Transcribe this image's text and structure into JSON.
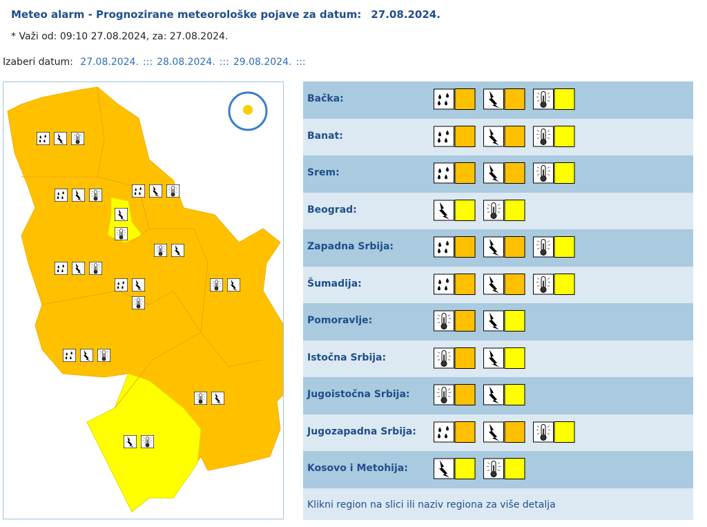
{
  "header": {
    "title": "Meteo alarm - Prognozirane meteorološke pojave za datum:",
    "date": "27.08.2024.",
    "valid": "* Važi od: 09:10 27.08.2024, za: 27.08.2024."
  },
  "date_picker": {
    "label": "Izaberi datum:",
    "dates": [
      "27.08.2024.",
      "28.08.2024.",
      "29.08.2024."
    ],
    "separator": ":::"
  },
  "regions": [
    {
      "name": "Bačka:",
      "warnings": [
        {
          "icon": "rain",
          "color": "#ffc000"
        },
        {
          "icon": "lightning",
          "color": "#ffc000"
        },
        {
          "icon": "temperature",
          "color": "#ffff00"
        }
      ]
    },
    {
      "name": "Banat:",
      "warnings": [
        {
          "icon": "rain",
          "color": "#ffc000"
        },
        {
          "icon": "lightning",
          "color": "#ffc000"
        },
        {
          "icon": "temperature",
          "color": "#ffff00"
        }
      ]
    },
    {
      "name": "Srem:",
      "warnings": [
        {
          "icon": "rain",
          "color": "#ffc000"
        },
        {
          "icon": "lightning",
          "color": "#ffc000"
        },
        {
          "icon": "temperature",
          "color": "#ffff00"
        }
      ]
    },
    {
      "name": "Beograd:",
      "warnings": [
        {
          "icon": "lightning",
          "color": "#ffff00"
        },
        {
          "icon": "temperature",
          "color": "#ffff00"
        }
      ]
    },
    {
      "name": "Zapadna Srbija:",
      "warnings": [
        {
          "icon": "rain",
          "color": "#ffc000"
        },
        {
          "icon": "lightning",
          "color": "#ffc000"
        },
        {
          "icon": "temperature",
          "color": "#ffff00"
        }
      ]
    },
    {
      "name": "Šumadija:",
      "warnings": [
        {
          "icon": "rain",
          "color": "#ffc000"
        },
        {
          "icon": "lightning",
          "color": "#ffc000"
        },
        {
          "icon": "temperature",
          "color": "#ffff00"
        }
      ]
    },
    {
      "name": "Pomoravlje:",
      "warnings": [
        {
          "icon": "temperature",
          "color": "#ffc000"
        },
        {
          "icon": "lightning",
          "color": "#ffff00"
        }
      ]
    },
    {
      "name": "Istočna Srbija:",
      "warnings": [
        {
          "icon": "temperature",
          "color": "#ffc000"
        },
        {
          "icon": "lightning",
          "color": "#ffff00"
        }
      ]
    },
    {
      "name": "Jugoistočna Srbija:",
      "warnings": [
        {
          "icon": "temperature",
          "color": "#ffc000"
        },
        {
          "icon": "lightning",
          "color": "#ffff00"
        }
      ]
    },
    {
      "name": "Jugozapadna Srbija:",
      "warnings": [
        {
          "icon": "rain",
          "color": "#ffc000"
        },
        {
          "icon": "lightning",
          "color": "#ffc000"
        },
        {
          "icon": "temperature",
          "color": "#ffff00"
        }
      ]
    },
    {
      "name": "Kosovo i Metohija:",
      "warnings": [
        {
          "icon": "lightning",
          "color": "#ffff00"
        },
        {
          "icon": "temperature",
          "color": "#ffff00"
        }
      ]
    }
  ],
  "footer": "Klikni region na slici ili naziv regiona za više detalja"
}
